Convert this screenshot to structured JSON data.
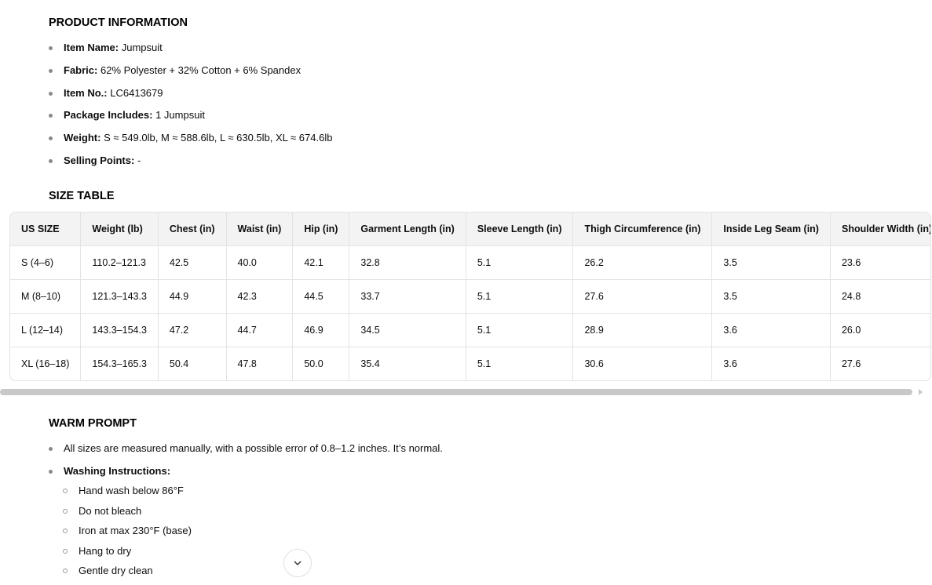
{
  "product_info": {
    "title": "PRODUCT INFORMATION",
    "items": [
      {
        "label": "Item Name",
        "value": "Jumpsuit"
      },
      {
        "label": "Fabric",
        "value": "62% Polyester + 32% Cotton + 6% Spandex"
      },
      {
        "label": "Item No.",
        "value": "LC6413679"
      },
      {
        "label": "Package Includes",
        "value": "1 Jumpsuit"
      },
      {
        "label": "Weight",
        "value": "S ≈ 549.0lb, M ≈ 588.6lb, L ≈ 630.5lb, XL ≈ 674.6lb"
      },
      {
        "label": "Selling Points",
        "value": "-"
      }
    ]
  },
  "size_table": {
    "title": "SIZE TABLE",
    "headers": [
      "US SIZE",
      "Weight (lb)",
      "Chest (in)",
      "Waist (in)",
      "Hip (in)",
      "Garment Length (in)",
      "Sleeve Length (in)",
      "Thigh Circumference (in)",
      "Inside Leg Seam (in)",
      "Shoulder Width (in)"
    ],
    "rows": [
      [
        "S (4–6)",
        "110.2–121.3",
        "42.5",
        "40.0",
        "42.1",
        "32.8",
        "5.1",
        "26.2",
        "3.5",
        "23.6"
      ],
      [
        "M (8–10)",
        "121.3–143.3",
        "44.9",
        "42.3",
        "44.5",
        "33.7",
        "5.1",
        "27.6",
        "3.5",
        "24.8"
      ],
      [
        "L (12–14)",
        "143.3–154.3",
        "47.2",
        "44.7",
        "46.9",
        "34.5",
        "5.1",
        "28.9",
        "3.6",
        "26.0"
      ],
      [
        "XL (16–18)",
        "154.3–165.3",
        "50.4",
        "47.8",
        "50.0",
        "35.4",
        "5.1",
        "30.6",
        "3.6",
        "27.6"
      ]
    ]
  },
  "warm_prompt": {
    "title": "WARM PROMPT",
    "note": "All sizes are measured manually, with a possible error of 0.8–1.2 inches. It’s normal.",
    "washing_label": "Washing Instructions",
    "washing": [
      "Hand wash below 86°F",
      "Do not bleach",
      "Iron at max 230°F (base)",
      "Hang to dry",
      "Gentle dry clean"
    ]
  },
  "scroll_down_icon": "chevron-down-icon"
}
